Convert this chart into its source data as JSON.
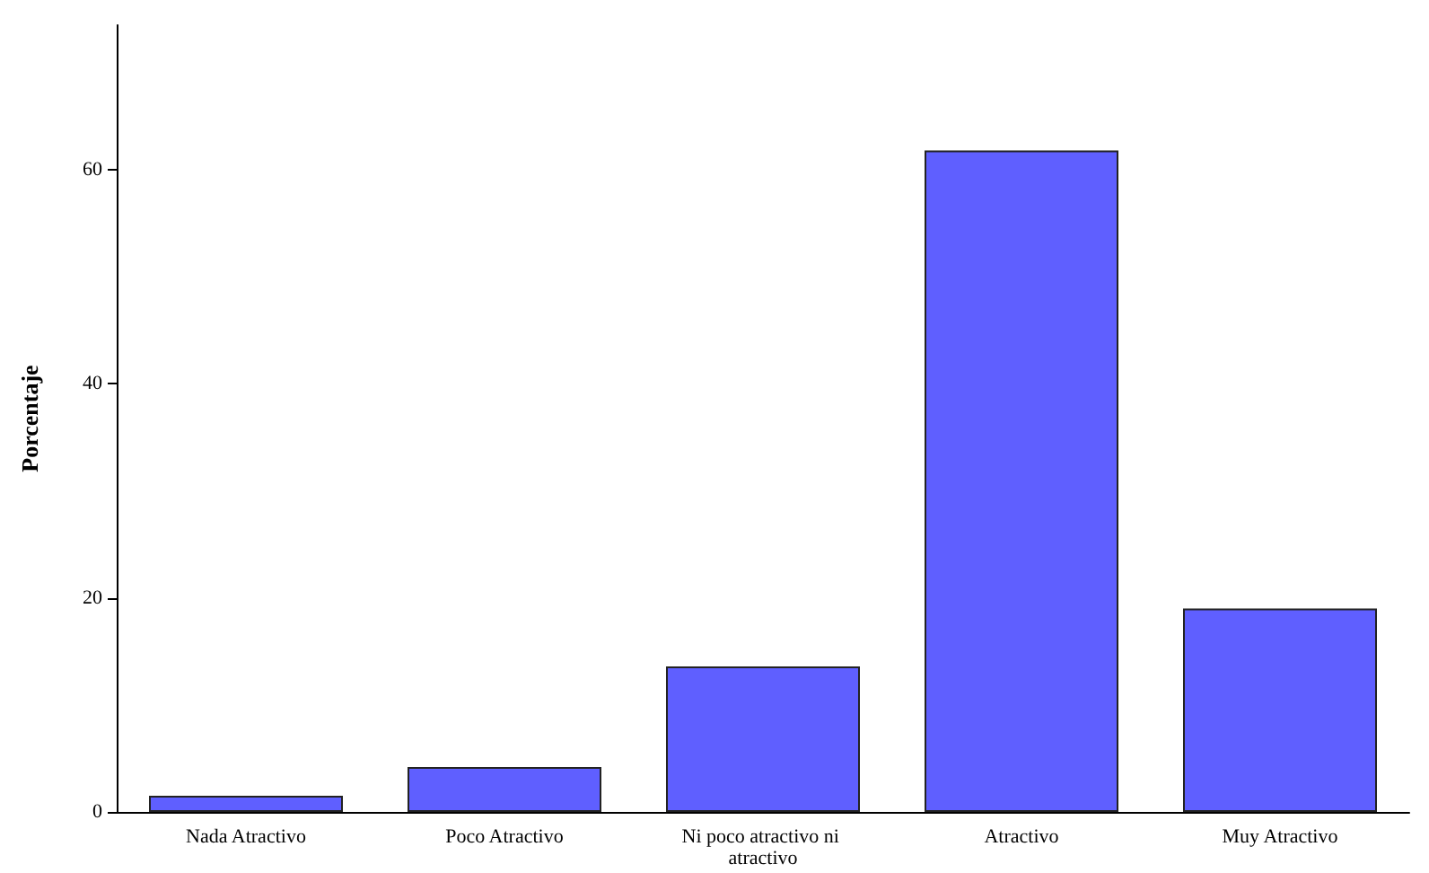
{
  "chart_data": {
    "type": "bar",
    "ylabel": "Porcentaje",
    "categories": [
      "Nada Atractivo",
      "Poco Atractivo",
      "Ni poco atractivo ni atractivo",
      "Atractivo",
      "Muy Atractivo"
    ],
    "values": [
      1.5,
      4.2,
      13.6,
      61.8,
      19.0
    ],
    "color": "#5f5fff",
    "ylim": [
      0,
      73.5
    ],
    "yticks": [
      0,
      20,
      40,
      60
    ],
    "grid": false
  }
}
